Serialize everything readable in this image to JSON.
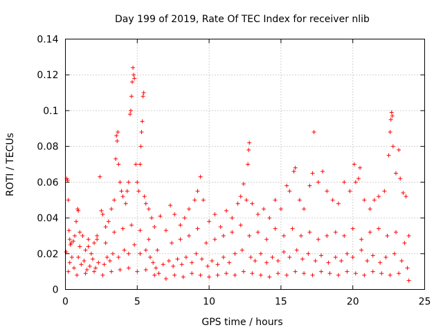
{
  "chart_data": {
    "type": "scatter",
    "title": "Day 199 of 2019, Rate Of TEC Index for receiver nlib",
    "xlabel": "GPS time / hours",
    "ylabel": "ROTI / TECUs",
    "xlim": [
      0,
      25
    ],
    "ylim": [
      0,
      0.14
    ],
    "x_ticks": [
      0,
      5,
      10,
      15,
      20,
      25
    ],
    "x_tick_labels": [
      "0",
      "5",
      "10",
      "15",
      "20",
      "25"
    ],
    "y_ticks": [
      0,
      0.02,
      0.04,
      0.06,
      0.08,
      0.1,
      0.12,
      0.14
    ],
    "y_tick_labels": [
      "0",
      "0.02",
      "0.04",
      "0.06",
      "0.08",
      "0.1",
      "0.12",
      "0.14"
    ],
    "grid": true,
    "marker": "+",
    "color": "#ff0000",
    "series": [
      {
        "name": "ROTI",
        "points": [
          [
            0.05,
            0.021
          ],
          [
            0.1,
            0.062
          ],
          [
            0.15,
            0.061
          ],
          [
            0.2,
            0.05
          ],
          [
            0.25,
            0.033
          ],
          [
            0.3,
            0.028
          ],
          [
            0.35,
            0.025
          ],
          [
            0.45,
            0.018
          ],
          [
            0.55,
            0.027
          ],
          [
            0.65,
            0.03
          ],
          [
            0.75,
            0.038
          ],
          [
            0.85,
            0.045
          ],
          [
            0.9,
            0.044
          ],
          [
            1.0,
            0.032
          ],
          [
            1.2,
            0.03
          ],
          [
            1.4,
            0.022
          ],
          [
            1.6,
            0.024
          ],
          [
            1.8,
            0.02
          ],
          [
            2.0,
            0.026
          ],
          [
            2.2,
            0.028
          ],
          [
            2.4,
            0.063
          ],
          [
            2.5,
            0.044
          ],
          [
            2.6,
            0.042
          ],
          [
            2.8,
            0.035
          ],
          [
            3.0,
            0.038
          ],
          [
            3.2,
            0.045
          ],
          [
            3.4,
            0.05
          ],
          [
            3.5,
            0.073
          ],
          [
            3.55,
            0.086
          ],
          [
            3.6,
            0.083
          ],
          [
            3.65,
            0.088
          ],
          [
            3.7,
            0.07
          ],
          [
            3.8,
            0.06
          ],
          [
            3.9,
            0.055
          ],
          [
            4.0,
            0.052
          ],
          [
            4.2,
            0.048
          ],
          [
            4.3,
            0.055
          ],
          [
            4.4,
            0.06
          ],
          [
            4.5,
            0.098
          ],
          [
            4.55,
            0.1
          ],
          [
            4.6,
            0.108
          ],
          [
            4.65,
            0.116
          ],
          [
            4.7,
            0.124
          ],
          [
            4.75,
            0.12
          ],
          [
            4.8,
            0.118
          ],
          [
            4.9,
            0.07
          ],
          [
            5.0,
            0.06
          ],
          [
            5.1,
            0.055
          ],
          [
            5.2,
            0.07
          ],
          [
            5.25,
            0.08
          ],
          [
            5.3,
            0.088
          ],
          [
            5.35,
            0.094
          ],
          [
            5.4,
            0.108
          ],
          [
            5.45,
            0.11
          ],
          [
            5.5,
            0.052
          ],
          [
            5.6,
            0.048
          ],
          [
            5.8,
            0.045
          ],
          [
            6.0,
            0.04
          ],
          [
            6.2,
            0.035
          ],
          [
            6.6,
            0.041
          ],
          [
            7.0,
            0.033
          ],
          [
            7.3,
            0.047
          ],
          [
            7.6,
            0.042
          ],
          [
            8.0,
            0.036
          ],
          [
            8.3,
            0.04
          ],
          [
            8.6,
            0.045
          ],
          [
            9.0,
            0.05
          ],
          [
            9.2,
            0.055
          ],
          [
            9.4,
            0.063
          ],
          [
            9.6,
            0.05
          ],
          [
            10.0,
            0.038
          ],
          [
            10.4,
            0.042
          ],
          [
            10.8,
            0.035
          ],
          [
            11.2,
            0.044
          ],
          [
            11.6,
            0.04
          ],
          [
            12.0,
            0.048
          ],
          [
            12.2,
            0.052
          ],
          [
            12.4,
            0.059
          ],
          [
            12.6,
            0.05
          ],
          [
            12.7,
            0.07
          ],
          [
            12.75,
            0.078
          ],
          [
            12.8,
            0.082
          ],
          [
            13.0,
            0.048
          ],
          [
            13.4,
            0.042
          ],
          [
            13.8,
            0.045
          ],
          [
            14.2,
            0.04
          ],
          [
            14.6,
            0.05
          ],
          [
            15.0,
            0.045
          ],
          [
            15.4,
            0.058
          ],
          [
            15.6,
            0.055
          ],
          [
            15.9,
            0.066
          ],
          [
            16.0,
            0.068
          ],
          [
            16.3,
            0.05
          ],
          [
            16.6,
            0.045
          ],
          [
            17.0,
            0.058
          ],
          [
            17.2,
            0.065
          ],
          [
            17.3,
            0.088
          ],
          [
            17.6,
            0.06
          ],
          [
            17.9,
            0.066
          ],
          [
            18.2,
            0.055
          ],
          [
            18.6,
            0.05
          ],
          [
            19.0,
            0.048
          ],
          [
            19.4,
            0.06
          ],
          [
            19.8,
            0.055
          ],
          [
            20.1,
            0.07
          ],
          [
            20.2,
            0.06
          ],
          [
            20.4,
            0.062
          ],
          [
            20.5,
            0.068
          ],
          [
            20.8,
            0.05
          ],
          [
            21.2,
            0.045
          ],
          [
            21.5,
            0.05
          ],
          [
            21.8,
            0.052
          ],
          [
            22.2,
            0.055
          ],
          [
            22.5,
            0.075
          ],
          [
            22.6,
            0.088
          ],
          [
            22.65,
            0.095
          ],
          [
            22.7,
            0.099
          ],
          [
            22.75,
            0.097
          ],
          [
            22.8,
            0.08
          ],
          [
            23.0,
            0.065
          ],
          [
            23.2,
            0.078
          ],
          [
            23.3,
            0.062
          ],
          [
            23.5,
            0.054
          ],
          [
            23.7,
            0.052
          ],
          [
            23.9,
            0.03
          ],
          [
            0.3,
            0.015
          ],
          [
            0.6,
            0.012
          ],
          [
            0.9,
            0.018
          ],
          [
            1.1,
            0.014
          ],
          [
            1.3,
            0.016
          ],
          [
            1.5,
            0.011
          ],
          [
            1.7,
            0.013
          ],
          [
            1.9,
            0.017
          ],
          [
            2.1,
            0.012
          ],
          [
            2.3,
            0.015
          ],
          [
            2.7,
            0.014
          ],
          [
            2.9,
            0.018
          ],
          [
            3.1,
            0.016
          ],
          [
            3.3,
            0.02
          ],
          [
            3.7,
            0.018
          ],
          [
            4.1,
            0.022
          ],
          [
            4.4,
            0.02
          ],
          [
            4.8,
            0.025
          ],
          [
            5.2,
            0.02
          ],
          [
            5.6,
            0.022
          ],
          [
            5.9,
            0.018
          ],
          [
            6.1,
            0.015
          ],
          [
            6.3,
            0.012
          ],
          [
            6.5,
            0.009
          ],
          [
            6.8,
            0.014
          ],
          [
            7.2,
            0.016
          ],
          [
            7.5,
            0.013
          ],
          [
            7.8,
            0.017
          ],
          [
            8.1,
            0.014
          ],
          [
            8.4,
            0.018
          ],
          [
            8.8,
            0.015
          ],
          [
            9.1,
            0.02
          ],
          [
            9.5,
            0.017
          ],
          [
            9.9,
            0.013
          ],
          [
            10.2,
            0.016
          ],
          [
            10.6,
            0.014
          ],
          [
            11.0,
            0.018
          ],
          [
            11.4,
            0.015
          ],
          [
            11.8,
            0.02
          ],
          [
            12.3,
            0.022
          ],
          [
            12.9,
            0.018
          ],
          [
            13.2,
            0.016
          ],
          [
            13.6,
            0.02
          ],
          [
            14.0,
            0.015
          ],
          [
            14.4,
            0.018
          ],
          [
            14.8,
            0.016
          ],
          [
            15.2,
            0.021
          ],
          [
            15.6,
            0.018
          ],
          [
            16.1,
            0.022
          ],
          [
            16.5,
            0.017
          ],
          [
            16.9,
            0.02
          ],
          [
            17.4,
            0.016
          ],
          [
            17.8,
            0.019
          ],
          [
            18.3,
            0.015
          ],
          [
            18.8,
            0.018
          ],
          [
            19.2,
            0.016
          ],
          [
            19.6,
            0.02
          ],
          [
            20.0,
            0.018
          ],
          [
            20.6,
            0.022
          ],
          [
            21.0,
            0.016
          ],
          [
            21.4,
            0.019
          ],
          [
            21.9,
            0.015
          ],
          [
            22.3,
            0.018
          ],
          [
            22.9,
            0.02
          ],
          [
            23.4,
            0.016
          ],
          [
            23.8,
            0.012
          ],
          [
            0.2,
            0.01
          ],
          [
            0.8,
            0.008
          ],
          [
            1.4,
            0.009
          ],
          [
            2.0,
            0.01
          ],
          [
            2.6,
            0.008
          ],
          [
            3.2,
            0.01
          ],
          [
            3.8,
            0.011
          ],
          [
            4.4,
            0.012
          ],
          [
            5.0,
            0.01
          ],
          [
            5.6,
            0.011
          ],
          [
            6.2,
            0.008
          ],
          [
            7.0,
            0.006
          ],
          [
            7.6,
            0.008
          ],
          [
            8.2,
            0.007
          ],
          [
            8.8,
            0.009
          ],
          [
            9.4,
            0.008
          ],
          [
            10.0,
            0.007
          ],
          [
            10.6,
            0.008
          ],
          [
            11.2,
            0.009
          ],
          [
            11.8,
            0.008
          ],
          [
            12.4,
            0.01
          ],
          [
            13.0,
            0.009
          ],
          [
            13.6,
            0.008
          ],
          [
            14.2,
            0.007
          ],
          [
            14.8,
            0.009
          ],
          [
            15.4,
            0.008
          ],
          [
            16.0,
            0.01
          ],
          [
            16.6,
            0.009
          ],
          [
            17.2,
            0.008
          ],
          [
            17.8,
            0.01
          ],
          [
            18.4,
            0.009
          ],
          [
            19.0,
            0.008
          ],
          [
            19.6,
            0.01
          ],
          [
            20.2,
            0.009
          ],
          [
            20.8,
            0.008
          ],
          [
            21.4,
            0.01
          ],
          [
            22.0,
            0.009
          ],
          [
            22.6,
            0.008
          ],
          [
            23.2,
            0.009
          ],
          [
            23.9,
            0.005
          ],
          [
            0.4,
            0.026
          ],
          [
            1.0,
            0.024
          ],
          [
            1.6,
            0.028
          ],
          [
            2.2,
            0.03
          ],
          [
            2.8,
            0.026
          ],
          [
            3.4,
            0.032
          ],
          [
            4.0,
            0.034
          ],
          [
            4.6,
            0.036
          ],
          [
            5.2,
            0.033
          ],
          [
            5.8,
            0.028
          ],
          [
            6.4,
            0.022
          ],
          [
            7.4,
            0.026
          ],
          [
            8.0,
            0.028
          ],
          [
            8.6,
            0.03
          ],
          [
            9.2,
            0.034
          ],
          [
            9.8,
            0.026
          ],
          [
            10.4,
            0.028
          ],
          [
            11.0,
            0.03
          ],
          [
            11.6,
            0.032
          ],
          [
            12.2,
            0.036
          ],
          [
            12.8,
            0.03
          ],
          [
            13.4,
            0.032
          ],
          [
            14.0,
            0.028
          ],
          [
            14.6,
            0.034
          ],
          [
            15.2,
            0.03
          ],
          [
            15.8,
            0.034
          ],
          [
            16.4,
            0.03
          ],
          [
            17.0,
            0.032
          ],
          [
            17.6,
            0.028
          ],
          [
            18.2,
            0.03
          ],
          [
            18.8,
            0.032
          ],
          [
            19.4,
            0.03
          ],
          [
            20.0,
            0.034
          ],
          [
            20.6,
            0.028
          ],
          [
            21.2,
            0.032
          ],
          [
            21.8,
            0.034
          ],
          [
            22.4,
            0.03
          ],
          [
            23.0,
            0.032
          ],
          [
            23.6,
            0.026
          ]
        ]
      }
    ]
  }
}
